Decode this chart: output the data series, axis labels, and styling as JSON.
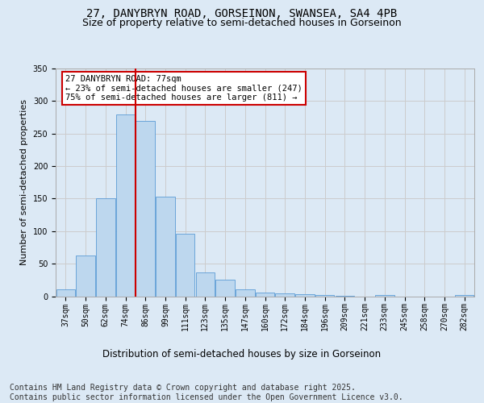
{
  "title_line1": "27, DANYBRYN ROAD, GORSEINON, SWANSEA, SA4 4PB",
  "title_line2": "Size of property relative to semi-detached houses in Gorseinon",
  "xlabel": "Distribution of semi-detached houses by size in Gorseinon",
  "ylabel": "Number of semi-detached properties",
  "categories": [
    "37sqm",
    "50sqm",
    "62sqm",
    "74sqm",
    "86sqm",
    "99sqm",
    "111sqm",
    "123sqm",
    "135sqm",
    "147sqm",
    "160sqm",
    "172sqm",
    "184sqm",
    "196sqm",
    "209sqm",
    "221sqm",
    "233sqm",
    "245sqm",
    "258sqm",
    "270sqm",
    "282sqm"
  ],
  "values": [
    10,
    63,
    150,
    280,
    270,
    153,
    96,
    37,
    26,
    10,
    5,
    4,
    3,
    2,
    1,
    0,
    2,
    0,
    0,
    0,
    2
  ],
  "bar_color": "#bdd7ee",
  "bar_edge_color": "#5b9bd5",
  "red_line_bin_index": 3,
  "annotation_text": "27 DANYBRYN ROAD: 77sqm\n← 23% of semi-detached houses are smaller (247)\n75% of semi-detached houses are larger (811) →",
  "annotation_box_color": "#ffffff",
  "annotation_box_edge": "#cc0000",
  "red_line_color": "#cc0000",
  "ylim": [
    0,
    350
  ],
  "yticks": [
    0,
    50,
    100,
    150,
    200,
    250,
    300,
    350
  ],
  "grid_color": "#cccccc",
  "bg_color": "#dce9f5",
  "plot_bg_color": "#dce9f5",
  "footer": "Contains HM Land Registry data © Crown copyright and database right 2025.\nContains public sector information licensed under the Open Government Licence v3.0.",
  "footer_fontsize": 7,
  "title_fontsize1": 10,
  "title_fontsize2": 9,
  "xlabel_fontsize": 8.5,
  "ylabel_fontsize": 8,
  "tick_fontsize": 7,
  "annotation_fontsize": 7.5
}
